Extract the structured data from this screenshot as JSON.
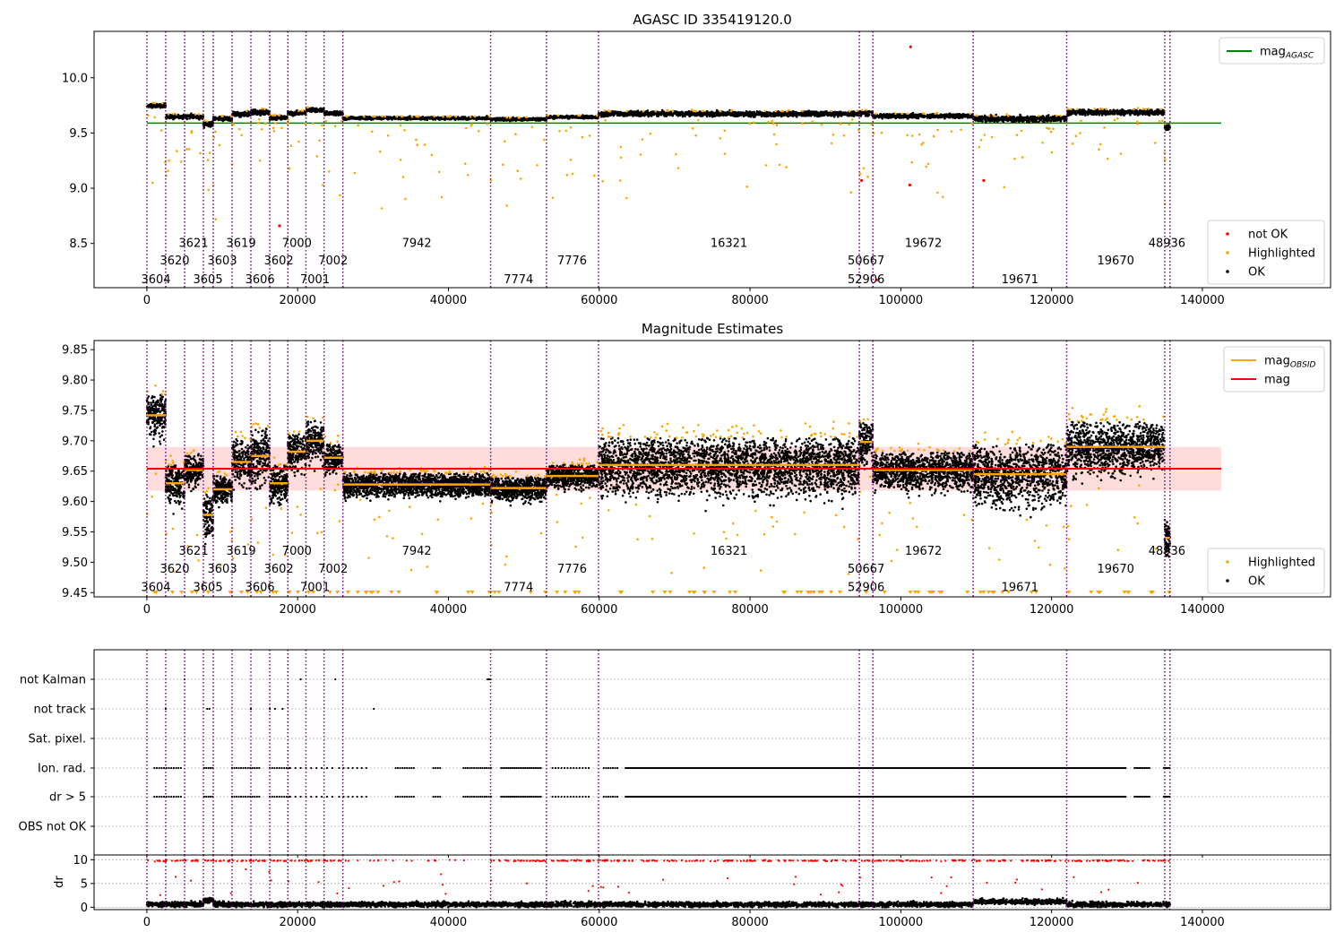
{
  "chart_data": [
    {
      "type": "scatter",
      "title": "AGASC ID 335419120.0",
      "xlim": [
        -7000,
        157000
      ],
      "ylim": [
        8.1,
        10.42
      ],
      "xticks": [
        0,
        20000,
        40000,
        60000,
        80000,
        100000,
        120000,
        140000
      ],
      "xtick_labels": [
        "0",
        "20000",
        "40000",
        "60000",
        "80000",
        "100000",
        "120000",
        "140000"
      ],
      "yticks": [
        8.5,
        9.0,
        9.5,
        10.0
      ],
      "ytick_labels": [
        "8.5",
        "9.0",
        "9.5",
        "10.0"
      ],
      "mag_agasc": 9.59,
      "mag_agasc_x": [
        0,
        142500
      ],
      "legend_top": {
        "position": "top-right",
        "entries": [
          {
            "label": "mag",
            "sub": "AGASC",
            "color": "#008000",
            "kind": "line"
          }
        ]
      },
      "legend_bottom": {
        "position": "lower-right",
        "entries": [
          {
            "label": "not OK",
            "color": "#ff0000"
          },
          {
            "label": "Highlighted",
            "color": "#ffa500"
          },
          {
            "label": "OK",
            "color": "#000000"
          }
        ]
      },
      "obs_label_rows_y": [
        8.51,
        8.35,
        8.18
      ],
      "segments": [
        {
          "x0": 0,
          "x1": 2500,
          "level": 9.75,
          "spread": 0.03
        },
        {
          "x0": 2500,
          "x1": 5000,
          "level": 9.65,
          "spread": 0.03
        },
        {
          "x0": 5000,
          "x1": 7500,
          "level": 9.65,
          "spread": 0.03
        },
        {
          "x0": 7500,
          "x1": 8800,
          "level": 9.58,
          "spread": 0.04
        },
        {
          "x0": 8800,
          "x1": 11300,
          "level": 9.63,
          "spread": 0.03
        },
        {
          "x0": 11300,
          "x1": 13800,
          "level": 9.67,
          "spread": 0.04
        },
        {
          "x0": 13800,
          "x1": 16300,
          "level": 9.69,
          "spread": 0.04
        },
        {
          "x0": 16300,
          "x1": 18700,
          "level": 9.64,
          "spread": 0.03
        },
        {
          "x0": 18700,
          "x1": 21100,
          "level": 9.68,
          "spread": 0.03
        },
        {
          "x0": 21100,
          "x1": 23500,
          "level": 9.71,
          "spread": 0.03
        },
        {
          "x0": 23500,
          "x1": 26000,
          "level": 9.68,
          "spread": 0.03
        },
        {
          "x0": 26000,
          "x1": 45600,
          "level": 9.635,
          "spread": 0.02
        },
        {
          "x0": 45600,
          "x1": 53000,
          "level": 9.625,
          "spread": 0.02
        },
        {
          "x0": 53000,
          "x1": 59900,
          "level": 9.645,
          "spread": 0.02
        },
        {
          "x0": 59900,
          "x1": 94500,
          "level": 9.675,
          "spread": 0.035
        },
        {
          "x0": 94500,
          "x1": 96300,
          "level": 9.68,
          "spread": 0.04
        },
        {
          "x0": 96300,
          "x1": 109600,
          "level": 9.655,
          "spread": 0.03
        },
        {
          "x0": 109600,
          "x1": 122000,
          "level": 9.63,
          "spread": 0.04
        },
        {
          "x0": 122000,
          "x1": 135000,
          "level": 9.69,
          "spread": 0.04
        },
        {
          "x0": 135000,
          "x1": 135700,
          "level": 9.55,
          "spread": 0.04
        }
      ],
      "not_ok_points": [
        {
          "x": 101300,
          "y": 10.28
        },
        {
          "x": 101200,
          "y": 9.03
        },
        {
          "x": 111000,
          "y": 9.07
        },
        {
          "x": 17600,
          "y": 8.66
        },
        {
          "x": 94800,
          "y": 9.07
        },
        {
          "x": 96800,
          "y": 8.17
        }
      ]
    },
    {
      "type": "scatter",
      "title": "Magnitude Estimates",
      "xlim": [
        -7000,
        157000
      ],
      "ylim": [
        9.443,
        9.865
      ],
      "xticks": [
        0,
        20000,
        40000,
        60000,
        80000,
        100000,
        120000,
        140000
      ],
      "xtick_labels": [
        "0",
        "20000",
        "40000",
        "60000",
        "80000",
        "100000",
        "120000",
        "140000"
      ],
      "yticks": [
        9.45,
        9.5,
        9.55,
        9.6,
        9.65,
        9.7,
        9.75,
        9.8,
        9.85
      ],
      "ytick_labels": [
        "9.45",
        "9.50",
        "9.55",
        "9.60",
        "9.65",
        "9.70",
        "9.75",
        "9.80",
        "9.85"
      ],
      "mag": 9.654,
      "mag_band": [
        9.618,
        9.69
      ],
      "mag_x": [
        0,
        142500
      ],
      "legend_top": {
        "position": "top-right",
        "entries": [
          {
            "label": "mag",
            "sub": "OBSID",
            "color": "#ffa500",
            "kind": "line"
          },
          {
            "label": "mag",
            "sub": "",
            "color": "#ff0000",
            "kind": "line"
          }
        ]
      },
      "legend_bottom": {
        "position": "lower-right",
        "entries": [
          {
            "label": "Highlighted",
            "color": "#ffa500"
          },
          {
            "label": "OK",
            "color": "#000000"
          }
        ]
      },
      "obs_label_rows_y": [
        9.52,
        9.49,
        9.46
      ],
      "segments": [
        {
          "x0": 0,
          "x1": 2500,
          "mean": 9.742,
          "spread": 0.045
        },
        {
          "x0": 2500,
          "x1": 5000,
          "mean": 9.63,
          "spread": 0.04
        },
        {
          "x0": 5000,
          "x1": 7500,
          "mean": 9.652,
          "spread": 0.035
        },
        {
          "x0": 7500,
          "x1": 8800,
          "mean": 9.578,
          "spread": 0.045
        },
        {
          "x0": 8800,
          "x1": 11300,
          "mean": 9.62,
          "spread": 0.03
        },
        {
          "x0": 11300,
          "x1": 13800,
          "mean": 9.665,
          "spread": 0.05
        },
        {
          "x0": 13800,
          "x1": 16300,
          "mean": 9.675,
          "spread": 0.06
        },
        {
          "x0": 16300,
          "x1": 18700,
          "mean": 9.63,
          "spread": 0.04
        },
        {
          "x0": 18700,
          "x1": 21100,
          "mean": 9.682,
          "spread": 0.04
        },
        {
          "x0": 21100,
          "x1": 23500,
          "mean": 9.7,
          "spread": 0.045
        },
        {
          "x0": 23500,
          "x1": 26000,
          "mean": 9.672,
          "spread": 0.03
        },
        {
          "x0": 26000,
          "x1": 45600,
          "mean": 9.628,
          "spread": 0.025
        },
        {
          "x0": 45600,
          "x1": 53000,
          "mean": 9.622,
          "spread": 0.025
        },
        {
          "x0": 53000,
          "x1": 59900,
          "mean": 9.642,
          "spread": 0.025
        },
        {
          "x0": 59900,
          "x1": 94500,
          "mean": 9.66,
          "spread": 0.06
        },
        {
          "x0": 94500,
          "x1": 96300,
          "mean": 9.698,
          "spread": 0.045
        },
        {
          "x0": 96300,
          "x1": 109600,
          "mean": 9.652,
          "spread": 0.04
        },
        {
          "x0": 109600,
          "x1": 122000,
          "mean": 9.645,
          "spread": 0.065
        },
        {
          "x0": 122000,
          "x1": 135000,
          "mean": 9.69,
          "spread": 0.055
        },
        {
          "x0": 135000,
          "x1": 135700,
          "mean": 9.54,
          "spread": 0.04
        }
      ]
    },
    {
      "type": "scatter",
      "xlim": [
        -7000,
        157000
      ],
      "xticks": [
        0,
        20000,
        40000,
        60000,
        80000,
        100000,
        120000,
        140000
      ],
      "xtick_labels": [
        "0",
        "20000",
        "40000",
        "60000",
        "80000",
        "100000",
        "120000",
        "140000"
      ],
      "flag_rows": [
        "not Kalman",
        "not track",
        "Sat. pixel.",
        "Ion. rad.",
        "dr > 5",
        "OBS not OK"
      ],
      "dr_ylabel": "dr",
      "dr_ylim": [
        -0.5,
        11
      ],
      "dr_yticks": [
        0,
        5,
        10
      ],
      "dr_ytick_labels": [
        "0",
        "5",
        "10"
      ]
    }
  ],
  "obsids": [
    {
      "x": 0,
      "label": "3604",
      "row": 2
    },
    {
      "x": 2500,
      "label": "3620",
      "row": 1
    },
    {
      "x": 5000,
      "label": "3621",
      "row": 0
    },
    {
      "x": 7500,
      "label": "3605",
      "row": 2
    },
    {
      "x": 8800,
      "label": "3603",
      "row": 1
    },
    {
      "x": 11300,
      "label": "3619",
      "row": 0
    },
    {
      "x": 13800,
      "label": "3606",
      "row": 2
    },
    {
      "x": 16300,
      "label": "3602",
      "row": 1
    },
    {
      "x": 18700,
      "label": "7000",
      "row": 0
    },
    {
      "x": 21100,
      "label": "7001",
      "row": 2
    },
    {
      "x": 23500,
      "label": "7002",
      "row": 1
    },
    {
      "x": 26000,
      "label": "7942",
      "row": 0
    },
    {
      "x": 45600,
      "label": "7774",
      "row": 2
    },
    {
      "x": 53000,
      "label": "7776",
      "row": 1
    },
    {
      "x": 59900,
      "label": "16321",
      "row": 0
    },
    {
      "x": 94500,
      "label": "52906",
      "row": 2
    },
    {
      "x": 96300,
      "label": "50667",
      "row": 1
    },
    {
      "x": 96300,
      "label": "19672",
      "row": 0
    },
    {
      "x": 109600,
      "label": "19671",
      "row": 2
    },
    {
      "x": 122000,
      "label": "19670",
      "row": 1
    },
    {
      "x": 135000,
      "label": "48936",
      "row": 0
    }
  ],
  "obs_boundaries": [
    0,
    2500,
    5000,
    7500,
    8800,
    11300,
    13800,
    16300,
    18700,
    21100,
    23500,
    26000,
    45600,
    53000,
    59900,
    94500,
    96300,
    109600,
    122000,
    135000,
    135700
  ],
  "obs_label_positions": [
    {
      "x": 1200
    },
    {
      "x": 3700
    },
    {
      "x": 6200
    },
    {
      "x": 8100
    },
    {
      "x": 10000
    },
    {
      "x": 12500
    },
    {
      "x": 15000
    },
    {
      "x": 17500
    },
    {
      "x": 19900
    },
    {
      "x": 22300
    },
    {
      "x": 24700
    },
    {
      "x": 35800
    },
    {
      "x": 49300
    },
    {
      "x": 56400
    },
    {
      "x": 77200
    },
    {
      "x": 95400
    },
    {
      "x": 95400
    },
    {
      "x": 103000
    },
    {
      "x": 115800
    },
    {
      "x": 128500
    },
    {
      "x": 135300
    }
  ],
  "colors": {
    "ok": "#000000",
    "highlighted": "#ffa500",
    "not_ok": "#ff0000",
    "agasc": "#008000",
    "mag": "#ff0000",
    "obsid_line": "#ffa500",
    "band": "#ffb3b3",
    "vline": "#800080",
    "grid": "#b0b0b0"
  }
}
